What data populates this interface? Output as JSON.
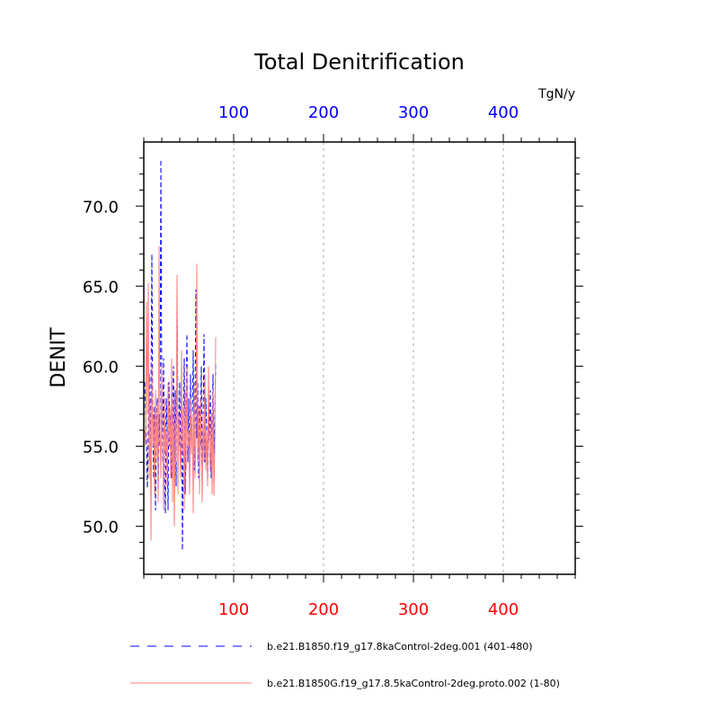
{
  "chart_data": {
    "type": "line",
    "title": "Total Denitrification",
    "ylabel": "DENIT",
    "units": "TgN/y",
    "xlim": [
      0,
      480
    ],
    "ylim": [
      47,
      74
    ],
    "xticks": [
      100,
      200,
      300,
      400
    ],
    "xtick_labels": [
      "100",
      "200",
      "300",
      "400"
    ],
    "yticks": [
      50,
      55,
      60,
      65,
      70
    ],
    "ytick_labels": [
      "50.0",
      "55.0",
      "60.0",
      "65.0",
      "70.0"
    ],
    "bottom_axis_color": "#ff0000",
    "top_axis_color": "#0000ff",
    "grid": "vertical dashed gridlines at major x ticks",
    "legend_position": "bottom",
    "series": [
      {
        "name": "b.e21.B1850.f19_g17.8kaControl-2deg.001 (401-480)",
        "color": "#0000ff",
        "dash": "dashed",
        "x": [
          1,
          2,
          3,
          4,
          5,
          6,
          7,
          8,
          9,
          10,
          11,
          12,
          13,
          14,
          15,
          16,
          17,
          18,
          19,
          20,
          21,
          22,
          23,
          24,
          25,
          26,
          27,
          28,
          29,
          30,
          31,
          32,
          33,
          34,
          35,
          36,
          37,
          38,
          39,
          40,
          41,
          42,
          43,
          44,
          45,
          46,
          47,
          48,
          49,
          50,
          51,
          52,
          53,
          54,
          55,
          56,
          57,
          58,
          59,
          60,
          61,
          62,
          63,
          64,
          65,
          66,
          67,
          68,
          69,
          70,
          71,
          72,
          73,
          74,
          75,
          76,
          77,
          78,
          79,
          80
        ],
        "values": [
          59.0,
          57.0,
          55.0,
          52.4,
          56.0,
          59.5,
          54.0,
          58.5,
          67.0,
          56.0,
          53.0,
          57.5,
          51.0,
          56.5,
          58.0,
          52.0,
          57.0,
          55.0,
          72.9,
          58.0,
          54.0,
          60.5,
          53.5,
          50.8,
          58.0,
          56.0,
          51.0,
          59.0,
          55.0,
          57.0,
          53.0,
          56.5,
          60.0,
          54.0,
          58.5,
          52.5,
          63.8,
          57.0,
          55.0,
          59.0,
          53.5,
          57.5,
          48.5,
          56.0,
          60.5,
          52.0,
          57.0,
          62.0,
          54.0,
          58.0,
          53.0,
          59.5,
          55.0,
          56.5,
          61.0,
          53.5,
          57.0,
          64.8,
          55.5,
          59.0,
          53.0,
          57.5,
          55.0,
          60.0,
          53.5,
          56.5,
          62.0,
          54.0,
          58.0,
          56.0,
          52.8,
          57.0,
          55.0,
          58.5,
          53.0,
          56.0,
          59.5,
          54.5,
          57.0,
          60.2
        ]
      },
      {
        "name": "b.e21.B1850G.f19_g17.8.5kaControl-2deg.proto.002 (1-80)",
        "color": "#ff7f7f",
        "dash": "solid",
        "x": [
          1,
          2,
          3,
          4,
          5,
          6,
          7,
          8,
          9,
          10,
          11,
          12,
          13,
          14,
          15,
          16,
          17,
          18,
          19,
          20,
          21,
          22,
          23,
          24,
          25,
          26,
          27,
          28,
          29,
          30,
          31,
          32,
          33,
          34,
          35,
          36,
          37,
          38,
          39,
          40,
          41,
          42,
          43,
          44,
          45,
          46,
          47,
          48,
          49,
          50,
          51,
          52,
          53,
          54,
          55,
          56,
          57,
          58,
          59,
          60,
          61,
          62,
          63,
          64,
          65,
          66,
          67,
          68,
          69,
          70,
          71,
          72,
          73,
          74,
          75,
          76,
          77,
          78,
          79,
          80
        ],
        "values": [
          56.0,
          55.0,
          64.0,
          57.0,
          65.2,
          53.0,
          58.0,
          49.1,
          60.0,
          55.0,
          57.0,
          52.0,
          58.5,
          54.0,
          57.5,
          51.5,
          67.5,
          56.0,
          53.0,
          60.0,
          55.5,
          51.0,
          58.0,
          54.5,
          56.0,
          52.5,
          59.0,
          55.0,
          57.5,
          53.0,
          60.5,
          51.5,
          58.0,
          50.0,
          56.5,
          54.0,
          65.7,
          52.0,
          57.0,
          55.0,
          53.0,
          61.0,
          54.5,
          57.5,
          51.0,
          58.5,
          53.5,
          60.0,
          55.0,
          56.0,
          52.0,
          58.0,
          54.5,
          57.0,
          50.8,
          59.0,
          53.0,
          55.5,
          66.4,
          54.0,
          57.5,
          52.0,
          58.0,
          55.0,
          51.5,
          57.0,
          54.0,
          59.5,
          53.5,
          56.0,
          52.5,
          60.0,
          55.0,
          53.5,
          57.0,
          52.0,
          58.5,
          51.9,
          55.0,
          61.8
        ]
      }
    ]
  }
}
